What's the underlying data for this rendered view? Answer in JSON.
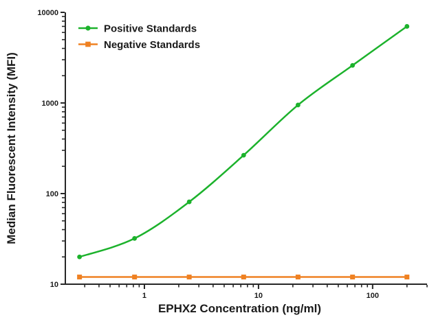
{
  "figure": {
    "background": "#ffffff"
  },
  "chart_data": {
    "type": "line",
    "title": "",
    "xlabel": "EPHX2 Concentration (ng/ml)",
    "ylabel": "Median Fluorescent Intensity (MFI)",
    "x_scale": "log",
    "y_scale": "log",
    "xlim": [
      0.2,
      300
    ],
    "ylim": [
      10,
      10000
    ],
    "x_major_ticks": [
      1,
      10,
      100
    ],
    "x_major_tick_labels": [
      "1",
      "10",
      "100"
    ],
    "y_major_ticks": [
      10,
      100,
      1000,
      10000
    ],
    "y_major_tick_labels": [
      "10",
      "100",
      "1000",
      "10000"
    ],
    "grid": false,
    "legend_position": "top-left-inside",
    "x": [
      0.27,
      0.82,
      2.47,
      7.41,
      22.2,
      66.7,
      200
    ],
    "series": [
      {
        "name": "Positive Standards",
        "color": "#1cb22c",
        "marker": "circle",
        "values": [
          20,
          32,
          81,
          265,
          950,
          2600,
          7000
        ]
      },
      {
        "name": "Negative Standards",
        "color": "#ef8122",
        "marker": "square",
        "values": [
          12,
          12,
          12,
          12,
          12,
          12,
          12
        ]
      }
    ],
    "axis_color": "#262626",
    "text_color": "#1a1a1a"
  }
}
